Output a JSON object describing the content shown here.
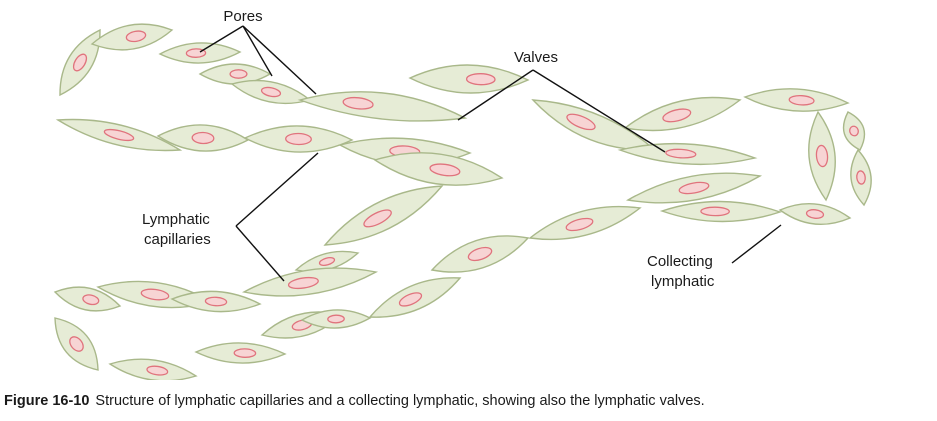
{
  "labels": {
    "pores": "Pores",
    "valves": "Valves",
    "lymphatic_capillaries": [
      "Lymphatic",
      "capillaries"
    ],
    "collecting_lymphatic": [
      "Collecting",
      "lymphatic"
    ]
  },
  "caption": {
    "figure_number": "Figure 16-10",
    "text": "Structure of lymphatic capillaries and a collecting lymphatic, showing also the lymphatic valves."
  },
  "colors": {
    "cell_fill": "#e6ecd6",
    "cell_stroke": "#a9b88a",
    "nucleus_fill": "#f7d4d4",
    "nucleus_stroke": "#e0737d"
  }
}
